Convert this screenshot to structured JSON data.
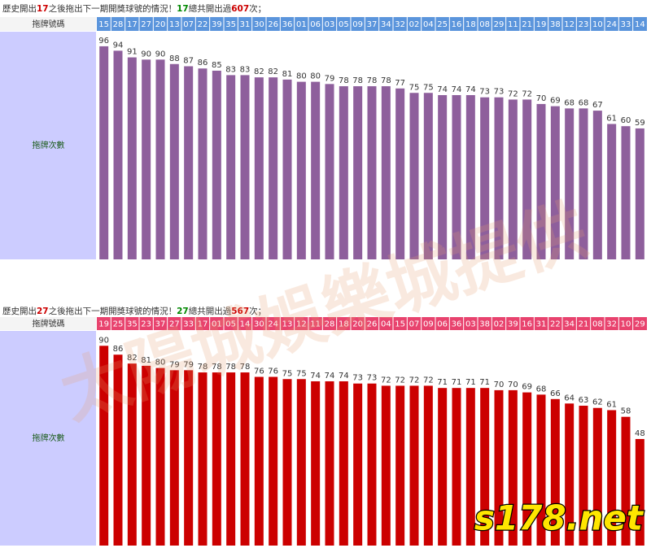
{
  "chart_data": [
    {
      "type": "bar",
      "header": [
        {
          "text": "歷史開出",
          "color": "#333333"
        },
        {
          "text": "17",
          "color": "#cc0000"
        },
        {
          "text": "之後拖出下一期開獎球號的情況！",
          "color": "#333333"
        },
        {
          "text": "17",
          "color": "#008800"
        },
        {
          "text": "總共開出過",
          "color": "#333333"
        },
        {
          "text": "607",
          "color": "#cc0000"
        },
        {
          "text": "次；",
          "color": "#333333"
        }
      ],
      "row_labels": [
        "拖牌號碼",
        "拖牌次數"
      ],
      "categories": [
        "15",
        "28",
        "17",
        "27",
        "20",
        "13",
        "07",
        "22",
        "39",
        "35",
        "31",
        "30",
        "26",
        "36",
        "01",
        "06",
        "03",
        "05",
        "09",
        "37",
        "34",
        "32",
        "02",
        "04",
        "25",
        "16",
        "18",
        "08",
        "29",
        "11",
        "21",
        "19",
        "38",
        "12",
        "23",
        "10",
        "24",
        "33",
        "14"
      ],
      "values": [
        96,
        94,
        91,
        90,
        90,
        88,
        87,
        86,
        85,
        83,
        83,
        82,
        82,
        81,
        80,
        80,
        79,
        78,
        78,
        78,
        78,
        77,
        75,
        75,
        74,
        74,
        74,
        73,
        73,
        72,
        72,
        70,
        69,
        68,
        68,
        67,
        61,
        60,
        59
      ],
      "color": "#8e5f9c",
      "header_color": "#5b95dc"
    },
    {
      "type": "bar",
      "header": [
        {
          "text": "歷史開出",
          "color": "#333333"
        },
        {
          "text": "27",
          "color": "#cc0000"
        },
        {
          "text": "之後拖出下一期開獎球號的情況！",
          "color": "#333333"
        },
        {
          "text": "27",
          "color": "#008800"
        },
        {
          "text": "總共開出過",
          "color": "#333333"
        },
        {
          "text": "567",
          "color": "#cc0000"
        },
        {
          "text": "次；",
          "color": "#333333"
        }
      ],
      "row_labels": [
        "拖牌號碼",
        "拖牌次數"
      ],
      "categories": [
        "19",
        "25",
        "35",
        "23",
        "37",
        "27",
        "33",
        "17",
        "01",
        "05",
        "14",
        "30",
        "24",
        "13",
        "12",
        "11",
        "28",
        "18",
        "20",
        "26",
        "04",
        "15",
        "07",
        "09",
        "06",
        "36",
        "03",
        "38",
        "02",
        "39",
        "16",
        "31",
        "22",
        "34",
        "21",
        "08",
        "32",
        "10",
        "29"
      ],
      "values": [
        90,
        86,
        82,
        81,
        80,
        79,
        79,
        78,
        78,
        78,
        78,
        76,
        76,
        75,
        75,
        74,
        74,
        74,
        73,
        73,
        72,
        72,
        72,
        72,
        71,
        71,
        71,
        71,
        70,
        70,
        69,
        68,
        66,
        64,
        63,
        62,
        61,
        58,
        48
      ],
      "color": "#cc0000",
      "header_color": "#e8436e"
    }
  ],
  "watermark": "太陽城娛樂城提供",
  "logo": "s178.net"
}
